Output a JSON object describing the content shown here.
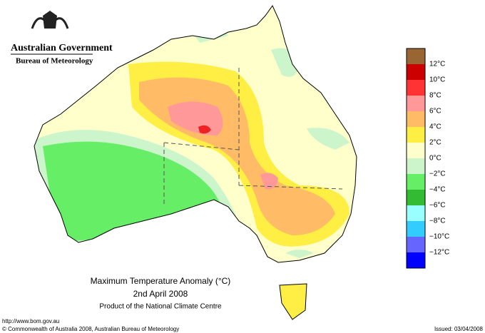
{
  "header": {
    "government": "Australian Government",
    "bureau": "Bureau of Meteorology"
  },
  "legend": {
    "labels": [
      "12°C",
      "10°C",
      "8°C",
      "6°C",
      "4°C",
      "2°C",
      "0°C",
      "−2°C",
      "−4°C",
      "−6°C",
      "−8°C",
      "−10°C",
      "−12°C"
    ],
    "colors": [
      "#996633",
      "#cc0000",
      "#ff3333",
      "#ff9999",
      "#ffbb66",
      "#ffee44",
      "#ffffcc",
      "#ccf5cc",
      "#66ee66",
      "#33bb33",
      "#99ffff",
      "#33ccff",
      "#6666ff",
      "#0000ff"
    ]
  },
  "title": {
    "line1": "Maximum Temperature Anomaly (°C)",
    "line2": "2nd April 2008",
    "line3": "Product of the National Climate Centre"
  },
  "footer": {
    "url": "http://www.bom.gov.au",
    "copyright": "© Commonwealth of Australia 2008, Australian Bureau of Meteorology",
    "issued": "Issued: 03/04/2008"
  }
}
